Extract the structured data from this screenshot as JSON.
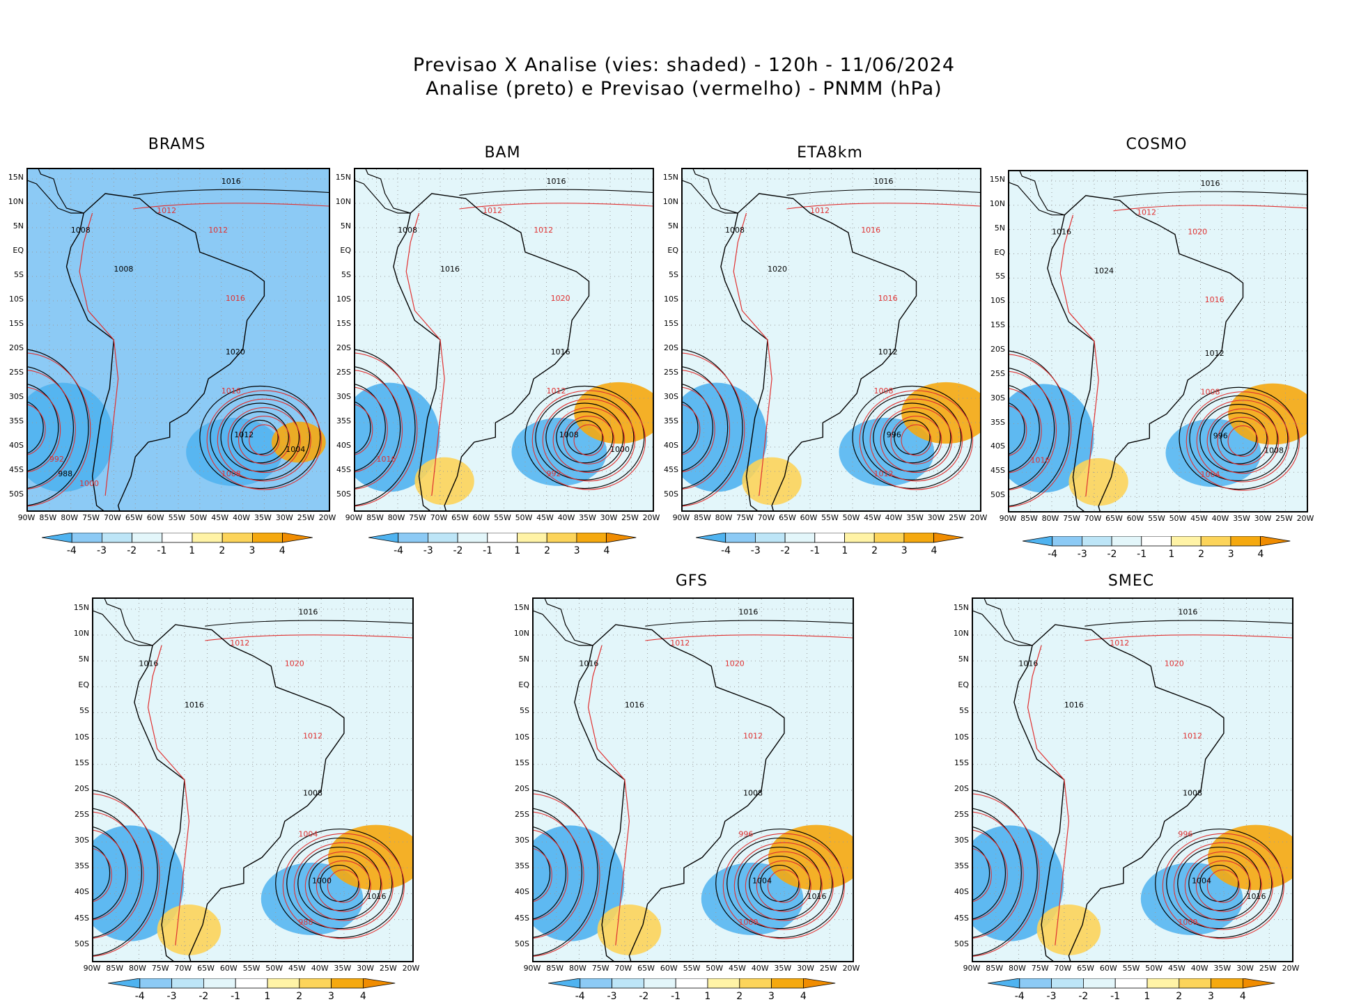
{
  "header": {
    "line1": "Previsao X Analise (vies: shaded) - 120h - 11/06/2024",
    "line2": "Analise (preto) e Previsao (vermelho) - PNMM (hPa)"
  },
  "colorbar": {
    "labels": [
      "-4",
      "-3",
      "-2",
      "-1",
      "1",
      "2",
      "3",
      "4"
    ],
    "colors": [
      "#4fb3f0",
      "#8ccaf5",
      "#bde5f7",
      "#e3f6fa",
      "#ffffff",
      "#fff3a6",
      "#fcd45a",
      "#f5a90f",
      "#f08c00"
    ]
  },
  "axes": {
    "lat_labels": [
      "15N",
      "10N",
      "5N",
      "EQ",
      "5S",
      "10S",
      "15S",
      "20S",
      "25S",
      "30S",
      "35S",
      "40S",
      "45S",
      "50S"
    ],
    "lon_labels": [
      "90W",
      "85W",
      "80W",
      "75W",
      "70W",
      "65W",
      "60W",
      "55W",
      "50W",
      "45W",
      "40W",
      "35W",
      "30W",
      "25W",
      "20W"
    ]
  },
  "panels": [
    {
      "title": "BRAMS",
      "contours": [
        "1016",
        "1012",
        "1008",
        "1012",
        "1008",
        "1016",
        "1020",
        "1016",
        "1012",
        "1008",
        "1004",
        "992",
        "988",
        "1000"
      ]
    },
    {
      "title": "BAM",
      "contours": [
        "1016",
        "1012",
        "1008",
        "1012",
        "1016",
        "1020",
        "1016",
        "1012",
        "1008",
        "992",
        "1000",
        "1016"
      ]
    },
    {
      "title": "ETA8km",
      "contours": [
        "1016",
        "1012",
        "1008",
        "1016",
        "1020",
        "1016",
        "1012",
        "1008",
        "996",
        "1012"
      ]
    },
    {
      "title": "COSMO",
      "contours": [
        "1016",
        "1012",
        "1016",
        "1020",
        "1024",
        "1016",
        "1012",
        "1008",
        "996",
        "1004",
        "1008",
        "1016"
      ]
    },
    {
      "title": "",
      "contours": [
        "1016",
        "1012",
        "1016",
        "1020",
        "1016",
        "1012",
        "1008",
        "1004",
        "1000",
        "988",
        "1016"
      ]
    },
    {
      "title": "GFS",
      "contours": [
        "1016",
        "1012",
        "1016",
        "1020",
        "1016",
        "1012",
        "1008",
        "996",
        "1004",
        "1000",
        "1016"
      ]
    },
    {
      "title": "SMEC",
      "contours": [
        "1016",
        "1012",
        "1016",
        "1020",
        "1016",
        "1012",
        "1008",
        "996",
        "1004",
        "1000",
        "1016"
      ]
    }
  ]
}
